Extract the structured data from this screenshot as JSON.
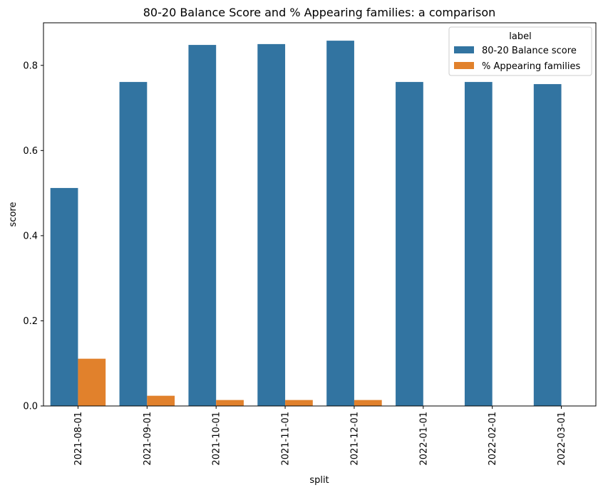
{
  "chart_data": {
    "type": "bar",
    "title": "80-20 Balance Score and % Appearing families: a comparison",
    "xlabel": "split",
    "ylabel": "score",
    "categories": [
      "2021-08-01",
      "2021-09-01",
      "2021-10-01",
      "2021-11-01",
      "2021-12-01",
      "2022-01-01",
      "2022-02-01",
      "2022-03-01"
    ],
    "ylim": [
      0,
      0.9
    ],
    "yticks": [
      0.0,
      0.2,
      0.4,
      0.6,
      0.8
    ],
    "ytick_labels": [
      "0.0",
      "0.2",
      "0.4",
      "0.6",
      "0.8"
    ],
    "grid": false,
    "legend": {
      "title": "label",
      "placement": "top-right"
    },
    "series": [
      {
        "name": "80-20 Balance score",
        "color": "#3274a1",
        "values": [
          0.512,
          0.761,
          0.848,
          0.85,
          0.858,
          0.761,
          0.761,
          0.756
        ]
      },
      {
        "name": "% Appearing families",
        "color": "#e1812c",
        "values": [
          0.111,
          0.024,
          0.014,
          0.014,
          0.014,
          0.0,
          0.0,
          0.0
        ]
      }
    ]
  }
}
